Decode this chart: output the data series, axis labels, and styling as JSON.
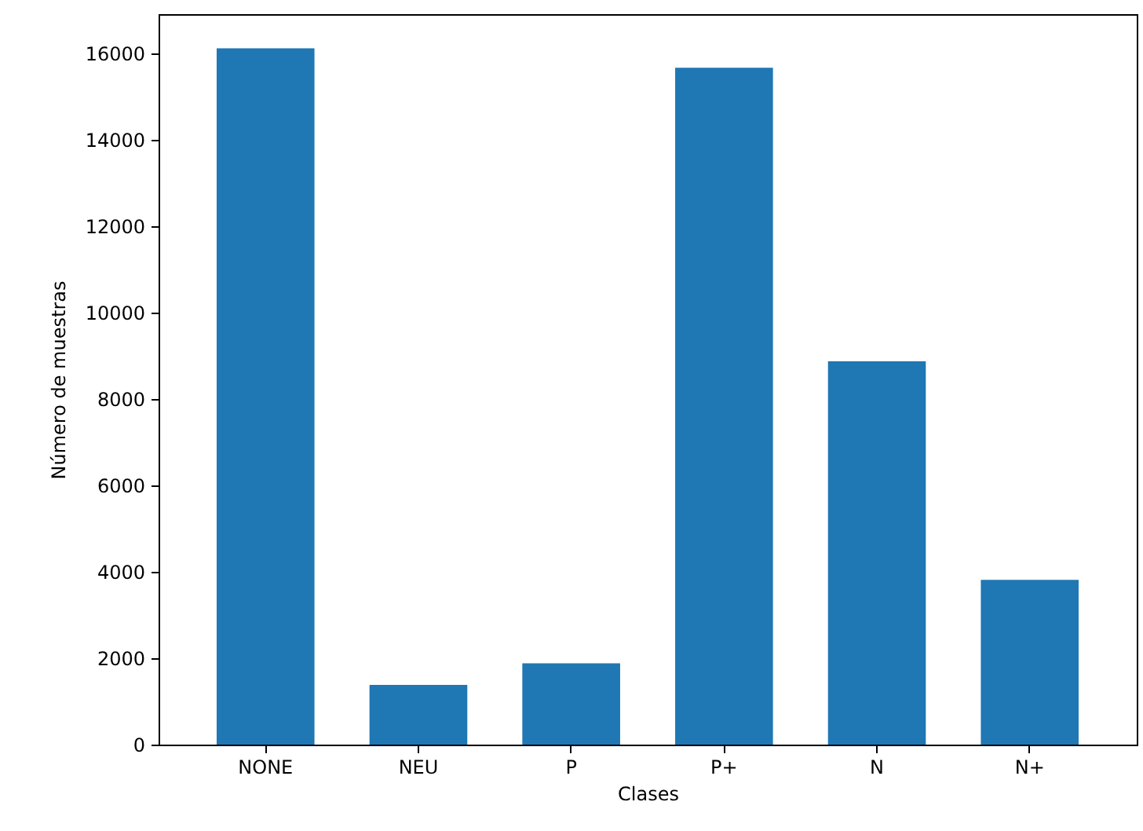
{
  "chart_data": {
    "type": "bar",
    "xlabel": "Clases",
    "ylabel": "Número de muestras",
    "categories": [
      "NONE",
      "NEU",
      "P",
      "P+",
      "N",
      "N+"
    ],
    "values": [
      16110,
      1380,
      1880,
      15660,
      8870,
      3810
    ],
    "color": "#1f77b4",
    "ylim": [
      0,
      16900
    ],
    "yticks": [
      0,
      2000,
      4000,
      6000,
      8000,
      10000,
      12000,
      14000,
      16000
    ],
    "grid": false
  }
}
